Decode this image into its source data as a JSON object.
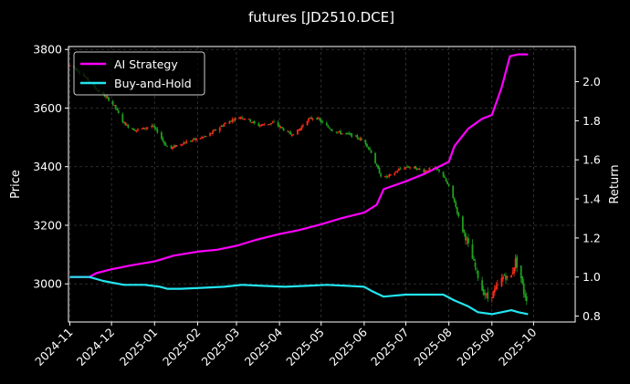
{
  "chart_data": {
    "type": "candlestick_with_lines",
    "title": "futures [JD2510.DCE]",
    "ylabel_left": "Price",
    "ylabel_right": "Return",
    "ylim_left": [
      2870,
      3810
    ],
    "ylim_right": [
      0.77,
      2.18
    ],
    "xlim": [
      "2024-10-31",
      "2025-10-31"
    ],
    "yticks_left": [
      3000,
      3200,
      3400,
      3600,
      3800
    ],
    "yticks_right": [
      "0.8",
      "1.0",
      "1.2",
      "1.4",
      "1.6",
      "1.8",
      "2.0"
    ],
    "xticks": [
      "2024-11",
      "2024-12",
      "2025-01",
      "2025-02",
      "2025-03",
      "2025-04",
      "2025-05",
      "2025-06",
      "2025-07",
      "2025-08",
      "2025-09",
      "2025-10"
    ],
    "grid": true,
    "legend_position": "top-left",
    "colors": {
      "up": "#ff2a1a",
      "down": "#1f9e1f",
      "ai_strategy": "#ff00ff",
      "buy_and_hold": "#22e5f0",
      "grid": "#3a3a3a",
      "axis": "#ffffff"
    },
    "price_path": [
      [
        "2024-11-01",
        3745
      ],
      [
        "2024-11-05",
        3735
      ],
      [
        "2024-11-10",
        3715
      ],
      [
        "2024-11-15",
        3690
      ],
      [
        "2024-11-20",
        3665
      ],
      [
        "2024-11-25",
        3645
      ],
      [
        "2024-11-30",
        3625
      ],
      [
        "2024-12-04",
        3600
      ],
      [
        "2024-12-08",
        3560
      ],
      [
        "2024-12-12",
        3540
      ],
      [
        "2024-12-18",
        3525
      ],
      [
        "2024-12-24",
        3530
      ],
      [
        "2024-12-30",
        3540
      ],
      [
        "2025-01-04",
        3515
      ],
      [
        "2025-01-08",
        3480
      ],
      [
        "2025-01-12",
        3460
      ],
      [
        "2025-01-18",
        3475
      ],
      [
        "2025-01-24",
        3485
      ],
      [
        "2025-01-28",
        3490
      ],
      [
        "2025-02-08",
        3505
      ],
      [
        "2025-02-14",
        3525
      ],
      [
        "2025-02-20",
        3545
      ],
      [
        "2025-02-26",
        3560
      ],
      [
        "2025-03-04",
        3570
      ],
      [
        "2025-03-10",
        3560
      ],
      [
        "2025-03-16",
        3540
      ],
      [
        "2025-03-22",
        3545
      ],
      [
        "2025-03-28",
        3550
      ],
      [
        "2025-04-03",
        3530
      ],
      [
        "2025-04-09",
        3510
      ],
      [
        "2025-04-15",
        3525
      ],
      [
        "2025-04-21",
        3560
      ],
      [
        "2025-04-27",
        3570
      ],
      [
        "2025-05-03",
        3545
      ],
      [
        "2025-05-09",
        3525
      ],
      [
        "2025-05-15",
        3515
      ],
      [
        "2025-05-21",
        3510
      ],
      [
        "2025-05-27",
        3500
      ],
      [
        "2025-06-02",
        3480
      ],
      [
        "2025-06-06",
        3450
      ],
      [
        "2025-06-10",
        3400
      ],
      [
        "2025-06-14",
        3360
      ],
      [
        "2025-06-20",
        3370
      ],
      [
        "2025-06-26",
        3390
      ],
      [
        "2025-07-02",
        3400
      ],
      [
        "2025-07-08",
        3395
      ],
      [
        "2025-07-14",
        3385
      ],
      [
        "2025-07-20",
        3395
      ],
      [
        "2025-07-26",
        3385
      ],
      [
        "2025-08-01",
        3330
      ],
      [
        "2025-08-05",
        3280
      ],
      [
        "2025-08-09",
        3210
      ],
      [
        "2025-08-13",
        3160
      ],
      [
        "2025-08-17",
        3100
      ],
      [
        "2025-08-21",
        3040
      ],
      [
        "2025-08-25",
        2980
      ],
      [
        "2025-08-29",
        2950
      ],
      [
        "2025-09-02",
        2970
      ],
      [
        "2025-09-06",
        3000
      ],
      [
        "2025-09-10",
        3030
      ],
      [
        "2025-09-14",
        3010
      ],
      [
        "2025-09-18",
        3080
      ],
      [
        "2025-09-22",
        3020
      ],
      [
        "2025-09-24",
        2970
      ],
      [
        "2025-09-27",
        2940
      ]
    ],
    "series": [
      {
        "name": "AI Strategy",
        "x": [
          "2024-11-01",
          "2024-11-15",
          "2024-11-20",
          "2024-12-01",
          "2024-12-15",
          "2025-01-01",
          "2025-01-15",
          "2025-02-01",
          "2025-02-15",
          "2025-03-01",
          "2025-03-15",
          "2025-04-01",
          "2025-04-15",
          "2025-05-01",
          "2025-05-15",
          "2025-06-01",
          "2025-06-10",
          "2025-06-15",
          "2025-07-01",
          "2025-07-15",
          "2025-08-01",
          "2025-08-05",
          "2025-08-15",
          "2025-08-25",
          "2025-09-01",
          "2025-09-08",
          "2025-09-14",
          "2025-09-20",
          "2025-09-27"
        ],
        "values": [
          1.0,
          1.0,
          1.02,
          1.04,
          1.06,
          1.08,
          1.11,
          1.13,
          1.14,
          1.16,
          1.19,
          1.22,
          1.24,
          1.27,
          1.3,
          1.33,
          1.37,
          1.45,
          1.49,
          1.53,
          1.59,
          1.67,
          1.76,
          1.81,
          1.83,
          1.97,
          2.13,
          2.14,
          2.14
        ]
      },
      {
        "name": "Buy-and-Hold",
        "x": [
          "2024-11-01",
          "2024-11-15",
          "2024-11-25",
          "2024-12-10",
          "2024-12-25",
          "2025-01-05",
          "2025-01-10",
          "2025-01-20",
          "2025-02-05",
          "2025-02-20",
          "2025-03-05",
          "2025-03-20",
          "2025-04-05",
          "2025-04-20",
          "2025-05-05",
          "2025-05-20",
          "2025-06-01",
          "2025-06-06",
          "2025-06-15",
          "2025-07-01",
          "2025-07-15",
          "2025-07-28",
          "2025-08-05",
          "2025-08-15",
          "2025-08-22",
          "2025-09-01",
          "2025-09-08",
          "2025-09-15",
          "2025-09-20",
          "2025-09-27"
        ],
        "values": [
          1.0,
          1.0,
          0.98,
          0.96,
          0.96,
          0.95,
          0.94,
          0.94,
          0.945,
          0.95,
          0.96,
          0.955,
          0.95,
          0.955,
          0.96,
          0.955,
          0.95,
          0.93,
          0.9,
          0.91,
          0.91,
          0.91,
          0.88,
          0.85,
          0.82,
          0.81,
          0.82,
          0.83,
          0.82,
          0.81
        ]
      }
    ]
  }
}
